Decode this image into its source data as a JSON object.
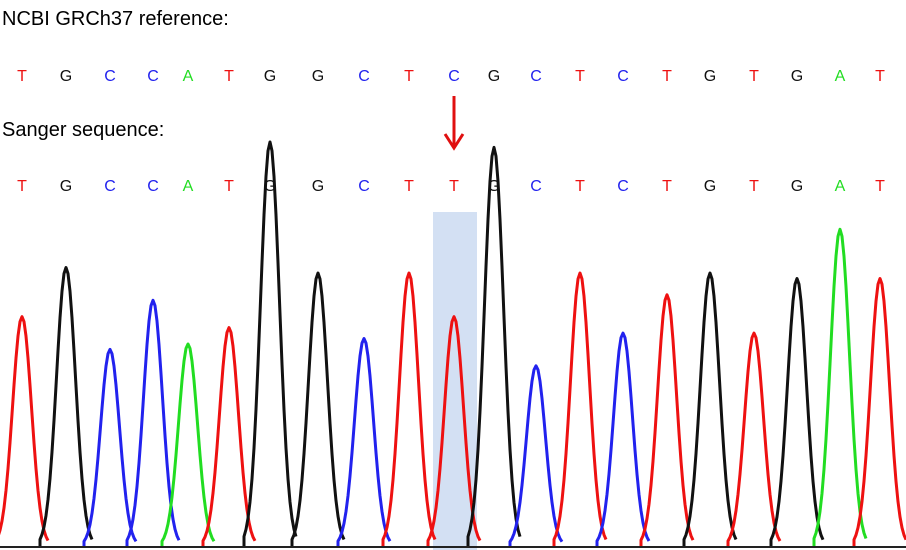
{
  "reference_label": "NCBI GRCh37 reference:",
  "sanger_label": "Sanger sequence:",
  "reference_sequence": [
    "T",
    "G",
    "C",
    "C",
    "A",
    "T",
    "G",
    "G",
    "C",
    "T",
    "C",
    "G",
    "C",
    "T",
    "C",
    "T",
    "G",
    "T",
    "G",
    "A",
    "T"
  ],
  "sanger_sequence": [
    "T",
    "G",
    "C",
    "C",
    "A",
    "T",
    "G",
    "G",
    "C",
    "T",
    "T",
    "G",
    "C",
    "T",
    "C",
    "T",
    "G",
    "T",
    "G",
    "A",
    "T"
  ],
  "variant_index": 10,
  "colors": {
    "A": "#22dd22",
    "C": "#2222ee",
    "G": "#111111",
    "T": "#ee1111",
    "highlight": "#d3e0f3",
    "arrow": "#e01010"
  },
  "chromatogram": {
    "peaks": [
      {
        "base": "T",
        "height": 0.42
      },
      {
        "base": "G",
        "height": 0.51
      },
      {
        "base": "C",
        "height": 0.36
      },
      {
        "base": "C",
        "height": 0.45
      },
      {
        "base": "A",
        "height": 0.37
      },
      {
        "base": "T",
        "height": 0.4
      },
      {
        "base": "G",
        "height": 0.74
      },
      {
        "base": "G",
        "height": 0.5
      },
      {
        "base": "C",
        "height": 0.38
      },
      {
        "base": "T",
        "height": 0.5
      },
      {
        "base": "T",
        "height": 0.42
      },
      {
        "base": "G",
        "height": 0.73
      },
      {
        "base": "C",
        "height": 0.33
      },
      {
        "base": "T",
        "height": 0.5
      },
      {
        "base": "C",
        "height": 0.39
      },
      {
        "base": "T",
        "height": 0.46
      },
      {
        "base": "G",
        "height": 0.5
      },
      {
        "base": "T",
        "height": 0.39
      },
      {
        "base": "G",
        "height": 0.49
      },
      {
        "base": "A",
        "height": 0.58
      },
      {
        "base": "T",
        "height": 0.49
      }
    ]
  }
}
